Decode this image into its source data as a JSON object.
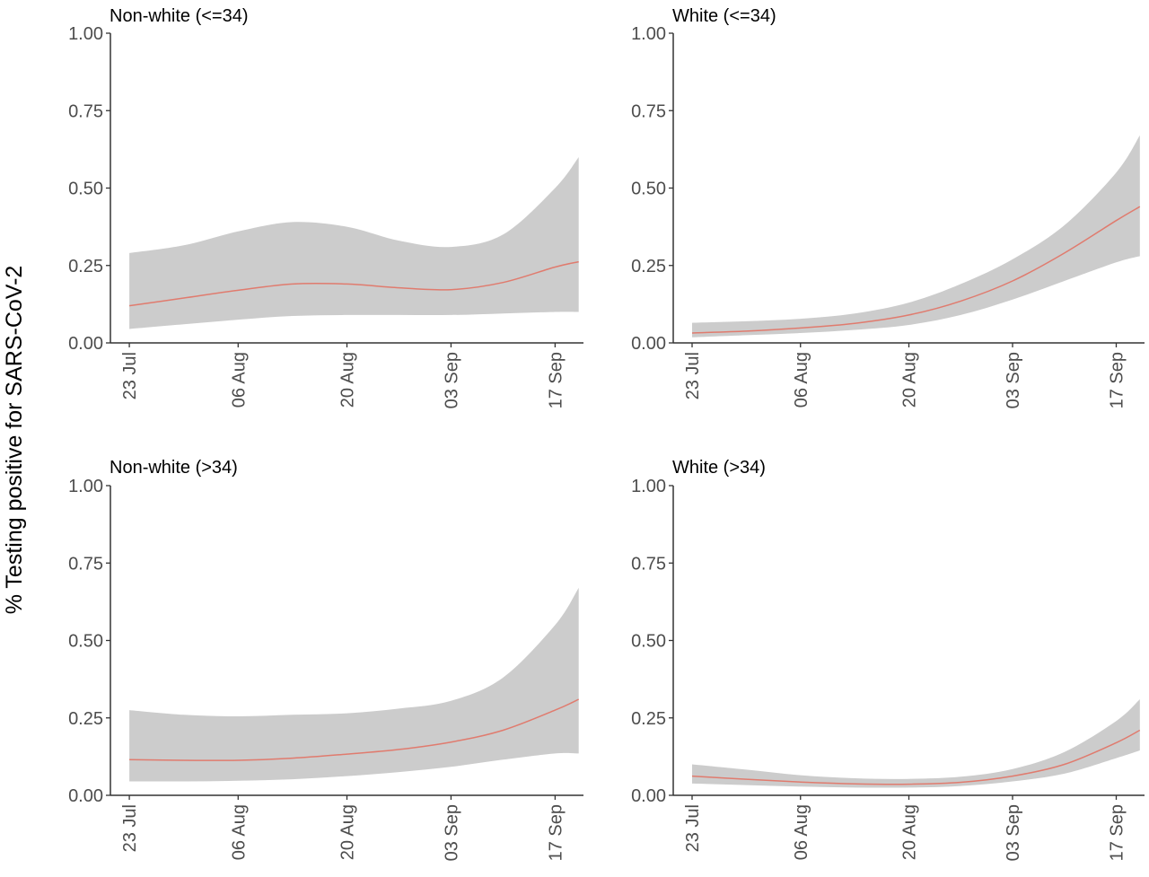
{
  "y_axis_title": "% Testing positive for SARS-CoV-2",
  "colors": {
    "band": "#cccccc",
    "line": "#e07b6e",
    "axis": "#333333",
    "tick_text": "#4d4d4d"
  },
  "chart_data": [
    {
      "type": "line",
      "title": "Non-white (<=34)",
      "xlabel": "",
      "ylabel": "% Testing positive for SARS-CoV-2",
      "x_dates": [
        "23 Jul",
        "30 Jul",
        "06 Aug",
        "13 Aug",
        "20 Aug",
        "27 Aug",
        "03 Sep",
        "10 Sep",
        "17 Sep",
        "20 Sep"
      ],
      "x_ticks": [
        "23 Jul",
        "06 Aug",
        "20 Aug",
        "03 Sep",
        "17 Sep"
      ],
      "ylim": [
        0,
        1
      ],
      "y_ticks": [
        "0.00",
        "0.25",
        "0.50",
        "0.75",
        "1.00"
      ],
      "grid": false,
      "series": [
        {
          "fit": [
            0.12,
            0.145,
            0.17,
            0.19,
            0.19,
            0.178,
            0.172,
            0.195,
            0.245,
            0.262
          ],
          "lower": [
            0.045,
            0.06,
            0.075,
            0.087,
            0.09,
            0.09,
            0.09,
            0.095,
            0.1,
            0.1
          ],
          "upper": [
            0.29,
            0.315,
            0.36,
            0.39,
            0.375,
            0.33,
            0.31,
            0.35,
            0.5,
            0.6
          ]
        }
      ]
    },
    {
      "type": "line",
      "title": "White (<=34)",
      "xlabel": "",
      "ylabel": "% Testing positive for SARS-CoV-2",
      "x_dates": [
        "23 Jul",
        "30 Jul",
        "06 Aug",
        "13 Aug",
        "20 Aug",
        "27 Aug",
        "03 Sep",
        "10 Sep",
        "17 Sep",
        "20 Sep"
      ],
      "x_ticks": [
        "23 Jul",
        "06 Aug",
        "20 Aug",
        "03 Sep",
        "17 Sep"
      ],
      "ylim": [
        0,
        1
      ],
      "y_ticks": [
        "0.00",
        "0.25",
        "0.50",
        "0.75",
        "1.00"
      ],
      "grid": false,
      "series": [
        {
          "fit": [
            0.032,
            0.038,
            0.048,
            0.063,
            0.09,
            0.135,
            0.2,
            0.29,
            0.395,
            0.44
          ],
          "lower": [
            0.018,
            0.025,
            0.032,
            0.042,
            0.058,
            0.09,
            0.14,
            0.2,
            0.26,
            0.28
          ],
          "upper": [
            0.065,
            0.07,
            0.078,
            0.095,
            0.13,
            0.19,
            0.27,
            0.38,
            0.55,
            0.67
          ]
        }
      ]
    },
    {
      "type": "line",
      "title": "Non-white (>34)",
      "xlabel": "",
      "ylabel": "% Testing positive for SARS-CoV-2",
      "x_dates": [
        "23 Jul",
        "30 Jul",
        "06 Aug",
        "13 Aug",
        "20 Aug",
        "27 Aug",
        "03 Sep",
        "10 Sep",
        "17 Sep",
        "20 Sep"
      ],
      "x_ticks": [
        "23 Jul",
        "06 Aug",
        "20 Aug",
        "03 Sep",
        "17 Sep"
      ],
      "ylim": [
        0,
        1
      ],
      "y_ticks": [
        "0.00",
        "0.25",
        "0.50",
        "0.75",
        "1.00"
      ],
      "grid": false,
      "series": [
        {
          "fit": [
            0.115,
            0.113,
            0.113,
            0.12,
            0.133,
            0.148,
            0.172,
            0.21,
            0.275,
            0.31
          ],
          "lower": [
            0.045,
            0.045,
            0.047,
            0.052,
            0.062,
            0.075,
            0.092,
            0.115,
            0.135,
            0.135
          ],
          "upper": [
            0.275,
            0.26,
            0.255,
            0.26,
            0.265,
            0.28,
            0.305,
            0.38,
            0.55,
            0.67
          ]
        }
      ]
    },
    {
      "type": "line",
      "title": "White (>34)",
      "xlabel": "",
      "ylabel": "% Testing positive for SARS-CoV-2",
      "x_dates": [
        "23 Jul",
        "30 Jul",
        "06 Aug",
        "13 Aug",
        "20 Aug",
        "27 Aug",
        "03 Sep",
        "10 Sep",
        "17 Sep",
        "20 Sep"
      ],
      "x_ticks": [
        "23 Jul",
        "06 Aug",
        "20 Aug",
        "03 Sep",
        "17 Sep"
      ],
      "ylim": [
        0,
        1
      ],
      "y_ticks": [
        "0.00",
        "0.25",
        "0.50",
        "0.75",
        "1.00"
      ],
      "grid": false,
      "series": [
        {
          "fit": [
            0.062,
            0.052,
            0.043,
            0.037,
            0.036,
            0.042,
            0.062,
            0.1,
            0.17,
            0.21
          ],
          "lower": [
            0.038,
            0.033,
            0.028,
            0.025,
            0.025,
            0.03,
            0.045,
            0.07,
            0.12,
            0.145
          ],
          "upper": [
            0.1,
            0.083,
            0.065,
            0.055,
            0.053,
            0.06,
            0.085,
            0.14,
            0.24,
            0.31
          ]
        }
      ]
    }
  ]
}
